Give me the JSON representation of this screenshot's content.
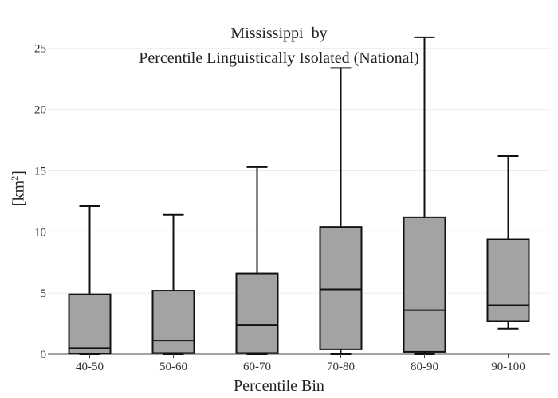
{
  "chart_data": {
    "type": "box",
    "title_line1": "Mississippi  by",
    "title_line2": "Percentile Linguistically Isolated (National)",
    "xlabel": "Percentile Bin",
    "ylabel_base": "[km",
    "ylabel_sup": "2",
    "ylabel_end": "]",
    "ylim": [
      0,
      27
    ],
    "yticks": [
      0,
      5,
      10,
      15,
      20,
      25
    ],
    "grid": true,
    "box_color": "#a3a3a3",
    "edge_color": "#111111",
    "categories": [
      "40-50",
      "50-60",
      "60-70",
      "70-80",
      "80-90",
      "90-100"
    ],
    "boxes": [
      {
        "min": 0.0,
        "q1": 0.05,
        "median": 0.5,
        "q3": 4.9,
        "max": 12.1
      },
      {
        "min": 0.0,
        "q1": 0.1,
        "median": 1.1,
        "q3": 5.2,
        "max": 11.4
      },
      {
        "min": 0.0,
        "q1": 0.1,
        "median": 2.4,
        "q3": 6.6,
        "max": 15.3
      },
      {
        "min": 0.0,
        "q1": 0.4,
        "median": 5.3,
        "q3": 10.4,
        "max": 23.4
      },
      {
        "min": 0.0,
        "q1": 0.2,
        "median": 3.6,
        "q3": 11.2,
        "max": 25.9
      },
      {
        "min": 2.1,
        "q1": 2.7,
        "median": 4.0,
        "q3": 9.4,
        "max": 16.2
      }
    ]
  }
}
